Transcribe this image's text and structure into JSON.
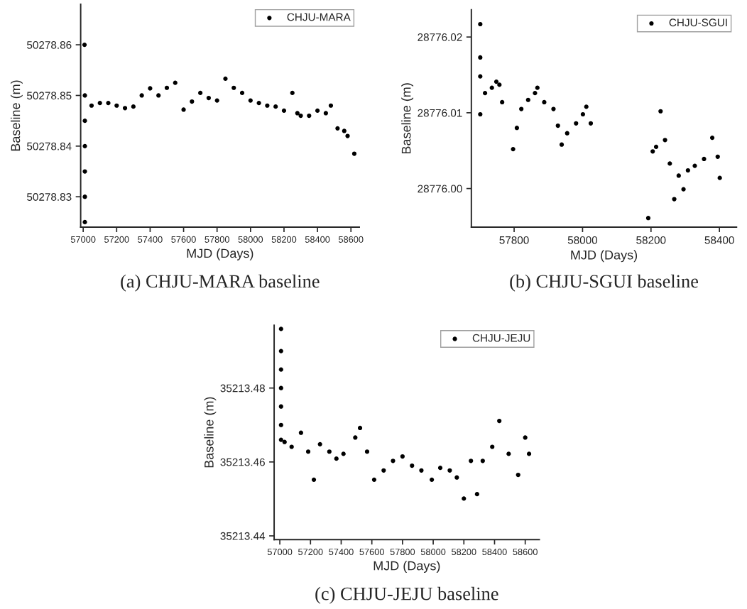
{
  "chart_data": [
    {
      "type": "scatter",
      "xlabel": "MJD (Days)",
      "ylabel": "Baseline (m)",
      "annotations": [
        "(a) CHJU-MARA baseline"
      ],
      "legend": "top right",
      "marker": "circle",
      "grid": false,
      "xlim": [
        56985,
        58650
      ],
      "ylim": [
        50278.824,
        50278.868
      ],
      "xticks": [
        57000,
        57200,
        57400,
        57600,
        57800,
        58000,
        58200,
        58400,
        58600
      ],
      "yticks": [
        50278.83,
        50278.84,
        50278.85,
        50278.86
      ],
      "series": [
        {
          "name": "CHJU-MARA",
          "color": "#000000",
          "x": [
            57008,
            57010,
            57010,
            57010,
            57010,
            57010,
            57010,
            57050,
            57100,
            57150,
            57200,
            57250,
            57300,
            57350,
            57400,
            57450,
            57500,
            57550,
            57600,
            57650,
            57700,
            57750,
            57800,
            57850,
            57900,
            57950,
            58000,
            58050,
            58100,
            58150,
            58200,
            58250,
            58280,
            58300,
            58350,
            58400,
            58450,
            58480,
            58520,
            58560,
            58580,
            58620
          ],
          "values": [
            50278.86,
            50278.825,
            50278.83,
            50278.835,
            50278.84,
            50278.845,
            50278.85,
            50278.848,
            50278.8485,
            50278.8485,
            50278.848,
            50278.8475,
            50278.8478,
            50278.85,
            50278.8514,
            50278.85,
            50278.8515,
            50278.8525,
            50278.8472,
            50278.8488,
            50278.8505,
            50278.8495,
            50278.849,
            50278.8533,
            50278.8515,
            50278.8505,
            50278.849,
            50278.8485,
            50278.848,
            50278.8478,
            50278.847,
            50278.8505,
            50278.8465,
            50278.846,
            50278.846,
            50278.847,
            50278.8465,
            50278.848,
            50278.8435,
            50278.843,
            50278.842,
            50278.8385
          ]
        }
      ]
    },
    {
      "type": "scatter",
      "xlabel": "MJD (Days)",
      "ylabel": "Baseline (m)",
      "annotations": [
        "(b) CHJU-SGUI baseline"
      ],
      "legend": "top right",
      "marker": "circle",
      "grid": false,
      "xlim": [
        57675,
        58450
      ],
      "ylim": [
        28775.9949,
        28776.0236
      ],
      "xticks": [
        57800,
        58000,
        58200,
        58400
      ],
      "yticks": [
        {
          "value": 28776.0,
          "label": "28776.00"
        },
        28776.01,
        28776.02
      ],
      "series": [
        {
          "name": "CHJU-SGUI",
          "color": "#000000",
          "x": [
            57701,
            57701,
            57701,
            57701,
            57715,
            57735,
            57748,
            57757,
            57765,
            57797,
            57808,
            57821,
            57841,
            57861,
            57868,
            57888,
            57915,
            57928,
            57939,
            57955,
            57981,
            58001,
            58011,
            58024,
            58192,
            58205,
            58215,
            58228,
            58241,
            58255,
            58268,
            58281,
            58295,
            58308,
            58328,
            58355,
            58379,
            58395,
            58401
          ],
          "values": [
            28776.0217,
            28776.0173,
            28776.0148,
            28776.0098,
            28776.0126,
            28776.0133,
            28776.0141,
            28776.0137,
            28776.0114,
            28776.0052,
            28776.008,
            28776.0105,
            28776.0117,
            28776.0126,
            28776.0133,
            28776.0114,
            28776.0105,
            28776.0083,
            28776.0058,
            28776.0073,
            28776.0086,
            28776.0098,
            28776.0108,
            28776.0086,
            28775.9961,
            28776.0049,
            28776.0055,
            28776.0102,
            28776.0064,
            28776.0033,
            28775.9986,
            28776.0017,
            28775.9999,
            28776.0024,
            28776.003,
            28776.0039,
            28776.0067,
            28776.0042,
            28776.0014
          ]
        }
      ]
    },
    {
      "type": "scatter",
      "xlabel": "MJD (Days)",
      "ylabel": "Baseline (m)",
      "annotations": [
        "(c) CHJU-JEJU baseline"
      ],
      "legend": "top right",
      "marker": "circle",
      "grid": false,
      "xlim": [
        56963,
        58692
      ],
      "ylim": [
        35213.439,
        35213.497
      ],
      "xticks": [
        57000,
        57200,
        57400,
        57600,
        57800,
        58000,
        58200,
        58400,
        58600
      ],
      "yticks": [
        35213.44,
        35213.46,
        35213.48
      ],
      "series": [
        {
          "name": "CHJU-JEJU",
          "color": "#000000",
          "x": [
            57008,
            57008,
            57008,
            57008,
            57008,
            57008,
            57008,
            57031,
            57077,
            57138,
            57185,
            57222,
            57262,
            57323,
            57369,
            57415,
            57492,
            57523,
            57569,
            57615,
            57677,
            57738,
            57800,
            57862,
            57923,
            57991,
            58046,
            58108,
            58154,
            58200,
            58246,
            58286,
            58323,
            58385,
            58431,
            58492,
            58554,
            58600,
            58625
          ],
          "values": [
            35213.496,
            35213.49,
            35213.485,
            35213.48,
            35213.475,
            35213.47,
            35213.466,
            35213.4654,
            35213.4641,
            35213.4679,
            35213.4628,
            35213.4552,
            35213.4648,
            35213.4628,
            35213.4609,
            35213.4622,
            35213.4666,
            35213.4692,
            35213.4628,
            35213.4552,
            35213.4577,
            35213.4603,
            35213.4615,
            35213.459,
            35213.4577,
            35213.4552,
            35213.4584,
            35213.4577,
            35213.4558,
            35213.4501,
            35213.4603,
            35213.4513,
            35213.4603,
            35213.4641,
            35213.4711,
            35213.4622,
            35213.4565,
            35213.4666,
            35213.4622
          ]
        }
      ]
    }
  ]
}
